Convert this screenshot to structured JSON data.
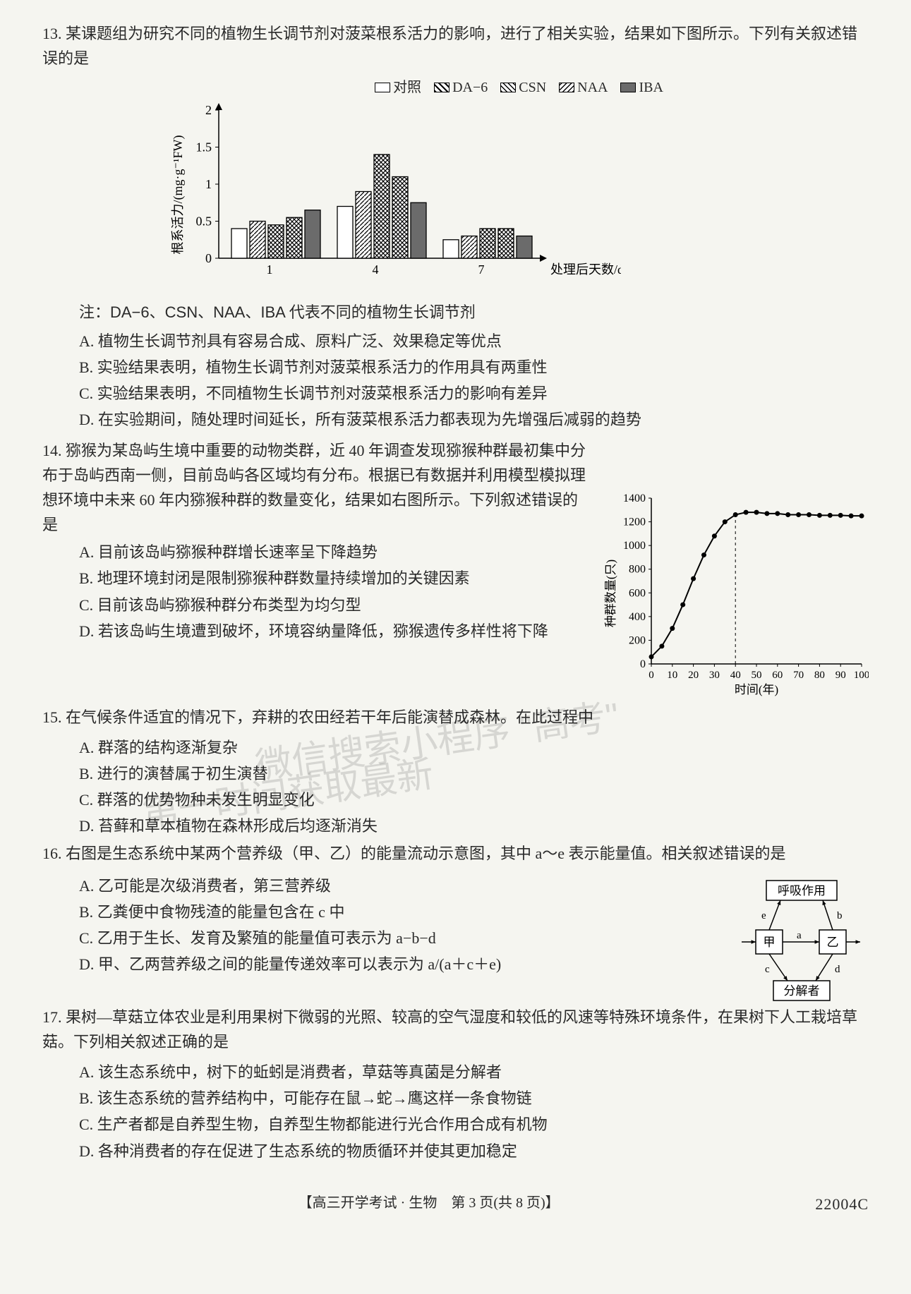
{
  "q13": {
    "num": "13.",
    "stem": "某课题组为研究不同的植物生长调节剂对菠菜根系活力的影响，进行了相关实验，结果如下图所示。下列有关叙述错误的是",
    "legend": [
      "对照",
      "DA−6",
      "CSN",
      "NAA",
      "IBA"
    ],
    "chart": {
      "ylabel": "根系活力/(mg·g⁻¹FW)",
      "xlabel": "处理后天数/d",
      "categories": [
        "1",
        "4",
        "7"
      ],
      "ylim": [
        0,
        2
      ],
      "ytick_step": 0.5,
      "series": [
        {
          "name": "对照",
          "fill": "#ffffff",
          "pattern": "none",
          "values": [
            0.4,
            0.7,
            0.25
          ]
        },
        {
          "name": "DA-6",
          "fill": "#ffffff",
          "pattern": "diag1",
          "values": [
            0.5,
            0.9,
            0.3
          ]
        },
        {
          "name": "CSN",
          "fill": "#ffffff",
          "pattern": "cross",
          "values": [
            0.45,
            1.4,
            0.4
          ]
        },
        {
          "name": "NAA",
          "fill": "#ffffff",
          "pattern": "diag2",
          "values": [
            0.55,
            1.1,
            0.4
          ]
        },
        {
          "name": "IBA",
          "fill": "#6b6b6b",
          "pattern": "solid",
          "values": [
            0.65,
            0.75,
            0.3
          ]
        }
      ]
    },
    "note": "注：DA−6、CSN、NAA、IBA 代表不同的植物生长调节剂",
    "opts": {
      "A": "A. 植物生长调节剂具有容易合成、原料广泛、效果稳定等优点",
      "B": "B. 实验结果表明，植物生长调节剂对菠菜根系活力的作用具有两重性",
      "C": "C. 实验结果表明，不同植物生长调节剂对菠菜根系活力的影响有差异",
      "D": "D. 在实验期间，随处理时间延长，所有菠菜根系活力都表现为先增强后减弱的趋势"
    }
  },
  "q14": {
    "num": "14.",
    "stem": "猕猴为某岛屿生境中重要的动物类群，近 40 年调查发现猕猴种群最初集中分布于岛屿西南一侧，目前岛屿各区域均有分布。根据已有数据并利用模型模拟理想环境中未来 60 年内猕猴种群的数量变化，结果如右图所示。下列叙述错误的是",
    "opts": {
      "A": "A. 目前该岛屿猕猴种群增长速率呈下降趋势",
      "B": "B. 地理环境封闭是限制猕猴种群数量持续增加的关键因素",
      "C": "C. 目前该岛屿猕猴种群分布类型为均匀型",
      "D": "D. 若该岛屿生境遭到破坏，环境容纳量降低，猕猴遗传多样性将下降"
    },
    "chart": {
      "ylabel": "种群数量(只)",
      "xlabel": "时间(年)",
      "xlim": [
        0,
        100
      ],
      "xtick_step": 10,
      "ylim": [
        0,
        1400
      ],
      "ytick_step": 200,
      "dashed_x": 40,
      "points_x": [
        0,
        5,
        10,
        15,
        20,
        25,
        30,
        35,
        40,
        45,
        50,
        55,
        60,
        65,
        70,
        75,
        80,
        85,
        90,
        95,
        100
      ],
      "points_y": [
        60,
        150,
        300,
        500,
        720,
        920,
        1080,
        1200,
        1260,
        1280,
        1280,
        1270,
        1270,
        1260,
        1260,
        1260,
        1255,
        1255,
        1255,
        1250,
        1250
      ]
    }
  },
  "q15": {
    "num": "15.",
    "stem": "在气候条件适宜的情况下，弃耕的农田经若干年后能演替成森林。在此过程中",
    "opts": {
      "A": "A. 群落的结构逐渐复杂",
      "B": "B. 进行的演替属于初生演替",
      "C": "C. 群落的优势物种未发生明显变化",
      "D": "D. 苔藓和草本植物在森林形成后均逐渐消失"
    }
  },
  "q16": {
    "num": "16.",
    "stem": "右图是生态系统中某两个营养级（甲、乙）的能量流动示意图，其中 a～e 表示能量值。相关叙述错误的是",
    "opts": {
      "A": "A. 乙可能是次级消费者，第三营养级",
      "B": "B. 乙粪便中食物残渣的能量包含在 c 中",
      "C": "C. 乙用于生长、发育及繁殖的能量值可表示为 a−b−d",
      "D": "D. 甲、乙两营养级之间的能量传递效率可以表示为 a/(a＋c＋e)"
    },
    "diagram": {
      "top": "呼吸作用",
      "jia": "甲",
      "yi": "乙",
      "bottom": "分解者",
      "labels": {
        "a": "a",
        "b": "b",
        "c": "c",
        "d": "d",
        "e": "e"
      }
    }
  },
  "q17": {
    "num": "17.",
    "stem": "果树—草菇立体农业是利用果树下微弱的光照、较高的空气湿度和较低的风速等特殊环境条件，在果树下人工栽培草菇。下列相关叙述正确的是",
    "opts": {
      "A": "A. 该生态系统中，树下的蚯蚓是消费者，草菇等真菌是分解者",
      "B": "B. 该生态系统的营养结构中，可能存在鼠→蛇→鹰这样一条食物链",
      "C": "C. 生产者都是自养型生物，自养型生物都能进行光合作用合成有机物",
      "D": "D. 各种消费者的存在促进了生态系统的物质循环并使其更加稳定"
    }
  },
  "footer": {
    "text": "【高三开学考试 · 生物　第 3 页(共 8 页)】",
    "code": "22004C"
  },
  "watermark1": "微信搜索小程序 \"高考\"",
  "watermark2": "第一时间获取最新"
}
